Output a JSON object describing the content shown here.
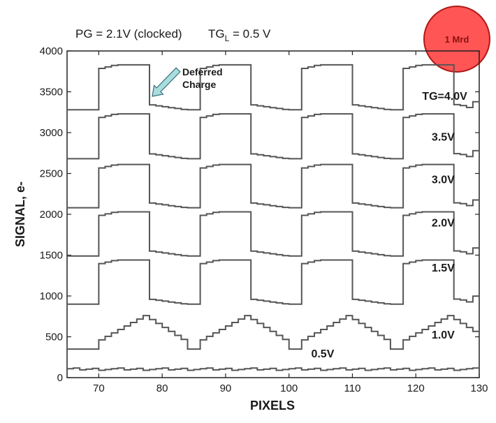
{
  "chart_data": {
    "type": "line",
    "header": {
      "pg_text": "PG = 2.1V (clocked)",
      "tg_prefix": "TG",
      "tg_sub": "L",
      "tg_suffix": " = 0.5 V"
    },
    "badge": {
      "text": "1 Mrd",
      "fill": "#ff5555",
      "stroke": "#b01818"
    },
    "xlabel": "PIXELS",
    "ylabel": "SIGNAL, e-",
    "xlim": [
      65,
      130
    ],
    "ylim": [
      0,
      4000
    ],
    "xticks": [
      70,
      80,
      90,
      100,
      110,
      120,
      130
    ],
    "yticks": [
      0,
      500,
      1000,
      1500,
      2000,
      2500,
      3000,
      3500,
      4000
    ],
    "line_color": "#555555",
    "annotation": {
      "line1": "Deferred",
      "line2": "Charge",
      "arrow_color": "#a8dede"
    },
    "series": [
      {
        "name": "TG=4.0V",
        "label_pos": [
          121,
          3400
        ],
        "kind": "square",
        "base": 3280,
        "high": 3830,
        "overshoot": 0
      },
      {
        "name": "3.5V",
        "label_pos": [
          122.5,
          2900
        ],
        "kind": "square",
        "base": 2680,
        "high": 3230,
        "overshoot": 0
      },
      {
        "name": "3.0V",
        "label_pos": [
          122.5,
          2380
        ],
        "kind": "square",
        "base": 2080,
        "high": 2610,
        "overshoot": 0
      },
      {
        "name": "2.0V",
        "label_pos": [
          122.5,
          1850
        ],
        "kind": "square",
        "base": 1490,
        "high": 2030,
        "overshoot": 0
      },
      {
        "name": "1.5V",
        "label_pos": [
          122.5,
          1300
        ],
        "kind": "square",
        "base": 900,
        "high": 1440,
        "overshoot": 0
      },
      {
        "name": "1.0V",
        "label_pos": [
          122.5,
          480
        ],
        "kind": "triangle",
        "base": 420,
        "high": 760,
        "overshoot": 0
      },
      {
        "name": "0.5V",
        "label_pos": [
          103.5,
          250
        ],
        "kind": "flat",
        "base": 90,
        "high": 130,
        "overshoot": 0
      }
    ]
  }
}
